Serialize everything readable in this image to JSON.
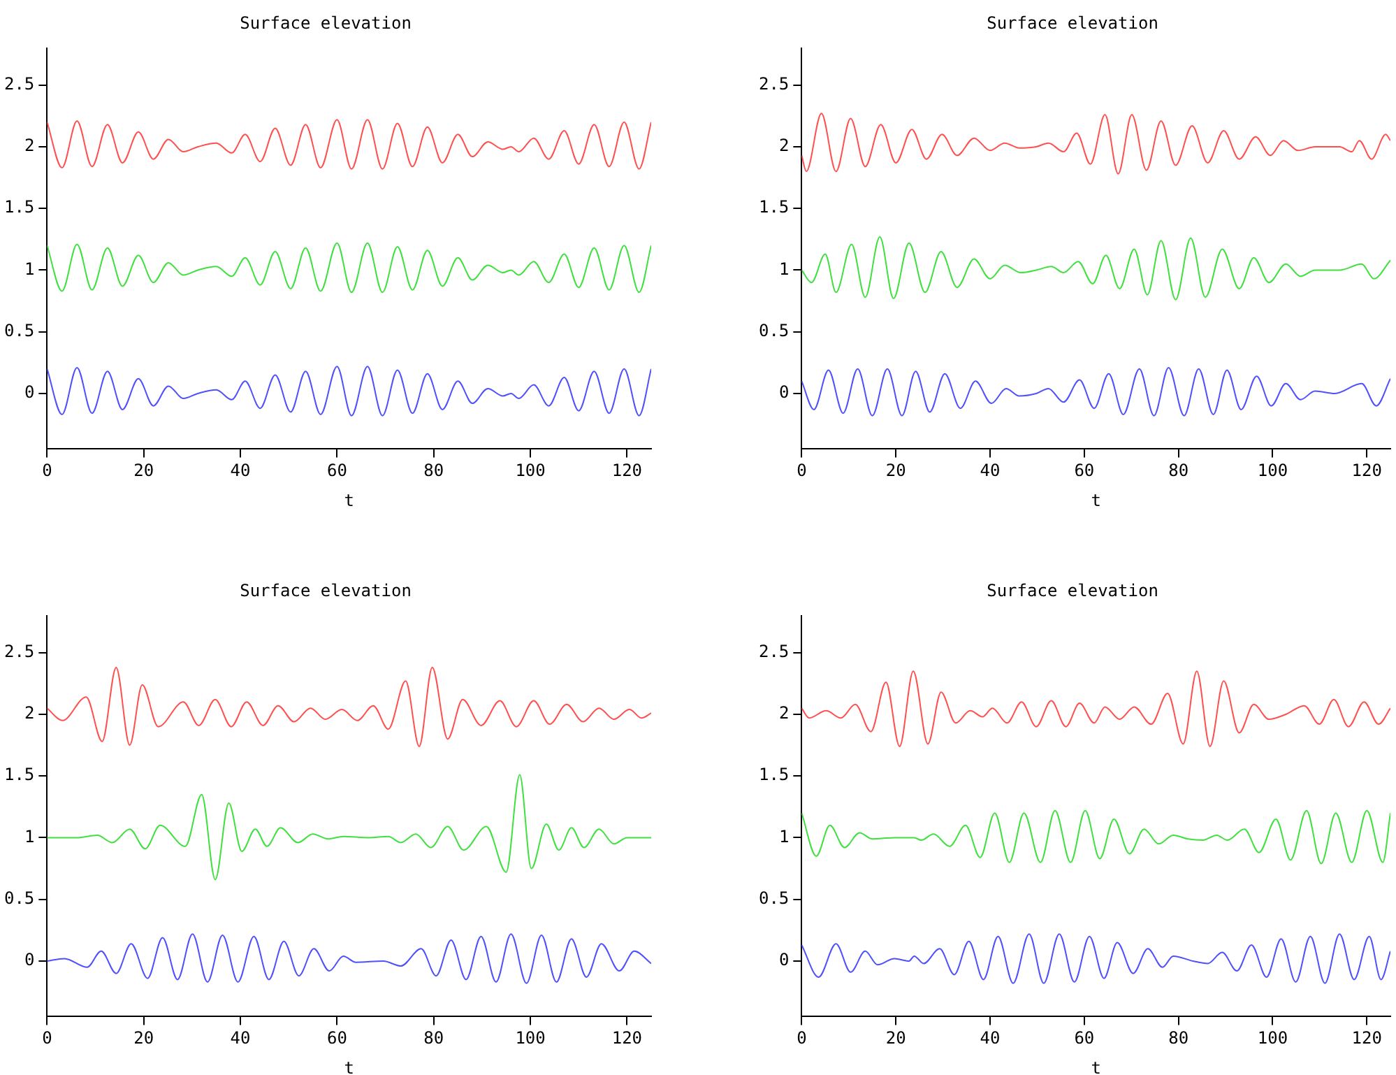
{
  "chart_data": [
    {
      "type": "line",
      "title": "Surface elevation",
      "xlabel": "t",
      "xlim": [
        0,
        125
      ],
      "xticks": [
        0,
        20,
        40,
        60,
        80,
        100,
        120
      ],
      "ylim": [
        -0.45,
        2.8
      ],
      "yticks": [
        0,
        0.5,
        1,
        1.5,
        2,
        2.5
      ],
      "grid": false,
      "legend": false,
      "marker": "none",
      "line_style": "solid",
      "series": [
        {
          "color": "#ff5050",
          "x": [
            0,
            3.1,
            6.2,
            9.3,
            12.5,
            15.6,
            18.9,
            22,
            25.1,
            28.2,
            31.2,
            35,
            38.2,
            41,
            44.1,
            47.2,
            50.4,
            53.5,
            56.6,
            60,
            63,
            66.3,
            69.4,
            72.5,
            75.6,
            78.7,
            81.8,
            85,
            88,
            91.2,
            94.3,
            96,
            97.6,
            100.7,
            103.8,
            107,
            110,
            113.2,
            116.3,
            119.4,
            122.5,
            125
          ],
          "values": [
            2.2,
            1.83,
            2.21,
            1.84,
            2.18,
            1.87,
            2.12,
            1.9,
            2.06,
            1.96,
            2.0,
            2.03,
            1.95,
            2.1,
            1.88,
            2.15,
            1.85,
            2.18,
            1.83,
            2.22,
            1.82,
            2.22,
            1.82,
            2.19,
            1.84,
            2.16,
            1.87,
            2.1,
            1.92,
            2.04,
            1.98,
            2.0,
            1.96,
            2.07,
            1.9,
            2.13,
            1.86,
            2.18,
            1.84,
            2.2,
            1.82,
            2.2
          ]
        },
        {
          "color": "#40e040",
          "x": [
            0,
            3.1,
            6.2,
            9.3,
            12.5,
            15.6,
            18.9,
            22,
            25.1,
            28.2,
            31.2,
            35,
            38.2,
            41,
            44.1,
            47.2,
            50.4,
            53.5,
            56.6,
            60,
            63,
            66.3,
            69.4,
            72.5,
            75.6,
            78.7,
            81.8,
            85,
            88,
            91.2,
            94.3,
            96,
            97.6,
            100.7,
            103.8,
            107,
            110,
            113.2,
            116.3,
            119.4,
            122.5,
            125
          ],
          "values": [
            1.2,
            0.83,
            1.21,
            0.84,
            1.18,
            0.87,
            1.12,
            0.9,
            1.06,
            0.96,
            1.0,
            1.03,
            0.95,
            1.1,
            0.88,
            1.15,
            0.85,
            1.18,
            0.83,
            1.22,
            0.82,
            1.22,
            0.82,
            1.19,
            0.84,
            1.16,
            0.87,
            1.1,
            0.92,
            1.04,
            0.98,
            1.0,
            0.96,
            1.07,
            0.9,
            1.13,
            0.86,
            1.18,
            0.84,
            1.2,
            0.82,
            1.2
          ]
        },
        {
          "color": "#5050ff",
          "x": [
            0,
            3.1,
            6.2,
            9.3,
            12.5,
            15.6,
            18.9,
            22,
            25.1,
            28.2,
            31.2,
            35,
            38.2,
            41,
            44.1,
            47.2,
            50.4,
            53.5,
            56.6,
            60,
            63,
            66.3,
            69.4,
            72.5,
            75.6,
            78.7,
            81.8,
            85,
            88,
            91.2,
            94.3,
            96,
            97.6,
            100.7,
            103.8,
            107,
            110,
            113.2,
            116.3,
            119.4,
            122.5,
            125
          ],
          "values": [
            0.2,
            -0.17,
            0.21,
            -0.16,
            0.18,
            -0.13,
            0.12,
            -0.1,
            0.06,
            -0.04,
            0.0,
            0.03,
            -0.05,
            0.1,
            -0.12,
            0.15,
            -0.15,
            0.18,
            -0.17,
            0.22,
            -0.18,
            0.22,
            -0.18,
            0.19,
            -0.16,
            0.16,
            -0.13,
            0.1,
            -0.08,
            0.04,
            -0.02,
            0.0,
            -0.04,
            0.07,
            -0.1,
            0.13,
            -0.14,
            0.18,
            -0.16,
            0.2,
            -0.18,
            0.2
          ]
        }
      ]
    },
    {
      "type": "line",
      "title": "Surface elevation",
      "xlabel": "t",
      "xlim": [
        0,
        125
      ],
      "xticks": [
        0,
        20,
        40,
        60,
        80,
        100,
        120
      ],
      "ylim": [
        -0.45,
        2.8
      ],
      "yticks": [
        0,
        0.5,
        1,
        1.5,
        2,
        2.5
      ],
      "grid": false,
      "legend": false,
      "marker": "none",
      "line_style": "solid",
      "series": [
        {
          "color": "#ff5050",
          "x": [
            0,
            1,
            4.2,
            7.3,
            10.4,
            13.5,
            16.8,
            20,
            23.4,
            26.5,
            29.8,
            33,
            36.6,
            40,
            43.1,
            46.2,
            49.8,
            52.4,
            55.6,
            58.4,
            61.3,
            64.4,
            67.2,
            70.1,
            73.2,
            76.3,
            79.4,
            82.9,
            86.2,
            89.6,
            92.9,
            96.4,
            99.5,
            102.3,
            105.4,
            109,
            114.2,
            116.8,
            118.4,
            121,
            124,
            125
          ],
          "values": [
            1.93,
            1.8,
            2.27,
            1.8,
            2.23,
            1.84,
            2.18,
            1.87,
            2.14,
            1.9,
            2.1,
            1.93,
            2.07,
            1.97,
            2.03,
            1.99,
            2.0,
            2.03,
            1.96,
            2.11,
            1.86,
            2.26,
            1.78,
            2.26,
            1.81,
            2.21,
            1.85,
            2.17,
            1.87,
            2.13,
            1.9,
            2.08,
            1.93,
            2.05,
            1.97,
            2.0,
            2.0,
            1.96,
            2.05,
            1.9,
            2.1,
            2.05
          ]
        },
        {
          "color": "#40e040",
          "x": [
            0,
            2.1,
            5,
            7.3,
            10.6,
            13.5,
            16.6,
            19.5,
            22.8,
            26.2,
            29.6,
            33,
            36.6,
            40,
            43.1,
            46.5,
            49.8,
            53,
            55.6,
            58.7,
            61.8,
            64.6,
            67.5,
            70.6,
            73.4,
            76.3,
            79.4,
            82.6,
            85.7,
            89.3,
            92.9,
            96,
            99.2,
            102.8,
            105.9,
            109,
            114.2,
            118.9,
            121.5,
            125
          ],
          "values": [
            1.0,
            0.9,
            1.13,
            0.82,
            1.21,
            0.78,
            1.27,
            0.77,
            1.22,
            0.82,
            1.15,
            0.86,
            1.09,
            0.93,
            1.04,
            0.98,
            1.0,
            1.03,
            0.98,
            1.07,
            0.89,
            1.12,
            0.85,
            1.17,
            0.8,
            1.24,
            0.76,
            1.26,
            0.78,
            1.17,
            0.85,
            1.1,
            0.9,
            1.05,
            0.95,
            1.0,
            1.0,
            1.05,
            0.93,
            1.08
          ]
        },
        {
          "color": "#5050ff",
          "x": [
            0,
            2.6,
            5.7,
            8.8,
            11.9,
            15,
            18.2,
            21.3,
            24.2,
            27.2,
            30.4,
            33.7,
            36.9,
            40.3,
            43.4,
            46.2,
            49.8,
            52.4,
            55.6,
            59,
            62.1,
            65.2,
            68.3,
            71.7,
            74.8,
            77.9,
            81.2,
            84.3,
            87.4,
            90.3,
            93.3,
            96.6,
            99.7,
            102.8,
            105.9,
            109,
            113.2,
            118.9,
            122,
            125
          ],
          "values": [
            0.1,
            -0.13,
            0.19,
            -0.16,
            0.2,
            -0.18,
            0.2,
            -0.18,
            0.18,
            -0.15,
            0.16,
            -0.12,
            0.1,
            -0.08,
            0.04,
            -0.02,
            0.0,
            0.04,
            -0.07,
            0.11,
            -0.12,
            0.16,
            -0.17,
            0.2,
            -0.18,
            0.21,
            -0.18,
            0.2,
            -0.17,
            0.19,
            -0.13,
            0.14,
            -0.1,
            0.08,
            -0.05,
            0.02,
            0.0,
            0.08,
            -0.1,
            0.12
          ]
        }
      ]
    },
    {
      "type": "line",
      "title": "Surface elevation",
      "xlabel": "t",
      "xlim": [
        0,
        125
      ],
      "xticks": [
        0,
        20,
        40,
        60,
        80,
        100,
        120
      ],
      "ylim": [
        -0.45,
        2.8
      ],
      "yticks": [
        0,
        0.5,
        1,
        1.5,
        2,
        2.5
      ],
      "grid": false,
      "legend": false,
      "marker": "none",
      "line_style": "solid",
      "series": [
        {
          "color": "#ff5050",
          "x": [
            0,
            3.2,
            8.1,
            11.4,
            14.3,
            17.1,
            19.7,
            23,
            28.2,
            31.4,
            34.8,
            38.1,
            41.3,
            44.7,
            47.8,
            51.1,
            54.5,
            57.6,
            61,
            64.2,
            67.5,
            70.6,
            74.2,
            77,
            79.7,
            82.9,
            86,
            89.8,
            93.7,
            97.1,
            100.7,
            104,
            107.5,
            110.9,
            114.2,
            117.3,
            120.5,
            123,
            125
          ],
          "values": [
            2.05,
            1.95,
            2.14,
            1.78,
            2.38,
            1.75,
            2.24,
            1.9,
            2.1,
            1.91,
            2.12,
            1.9,
            2.1,
            1.91,
            2.07,
            1.94,
            2.05,
            1.96,
            2.04,
            1.95,
            2.07,
            1.88,
            2.27,
            1.74,
            2.38,
            1.8,
            2.12,
            1.91,
            2.11,
            1.9,
            2.11,
            1.92,
            2.08,
            1.94,
            2.05,
            1.96,
            2.04,
            1.97,
            2.01
          ]
        },
        {
          "color": "#40e040",
          "x": [
            0,
            6.2,
            10.4,
            13.5,
            17.1,
            20.3,
            23.4,
            28.6,
            32,
            34.8,
            37.6,
            40.3,
            43.1,
            45.5,
            48.3,
            51.9,
            55,
            58.1,
            61.3,
            66.5,
            70.6,
            73.2,
            76.3,
            79.4,
            82.9,
            86.2,
            90.9,
            95,
            97.8,
            100.2,
            103.3,
            105.9,
            108.5,
            111.1,
            114.2,
            117.3,
            120,
            125
          ],
          "values": [
            1.0,
            1.0,
            1.02,
            0.96,
            1.07,
            0.91,
            1.1,
            0.93,
            1.35,
            0.66,
            1.28,
            0.89,
            1.07,
            0.93,
            1.08,
            0.96,
            1.03,
            0.99,
            1.01,
            1.0,
            1.01,
            0.96,
            1.03,
            0.92,
            1.09,
            0.9,
            1.09,
            0.72,
            1.51,
            0.75,
            1.11,
            0.9,
            1.08,
            0.92,
            1.07,
            0.95,
            1.0,
            1.0
          ]
        },
        {
          "color": "#5050ff",
          "x": [
            0,
            3.6,
            8.3,
            11.2,
            14.3,
            17.4,
            20.8,
            23.9,
            27,
            30.1,
            33.2,
            36.3,
            39.5,
            42.8,
            45.9,
            49,
            52.1,
            55.2,
            58.4,
            61.3,
            63.9,
            69.6,
            73.2,
            77.4,
            80.5,
            83.6,
            86.7,
            89.8,
            92.9,
            96,
            99.2,
            102.3,
            105.4,
            108.5,
            111.6,
            114.7,
            118.4,
            121.5,
            125
          ],
          "values": [
            0.0,
            0.02,
            -0.05,
            0.08,
            -0.1,
            0.14,
            -0.14,
            0.19,
            -0.15,
            0.22,
            -0.17,
            0.21,
            -0.17,
            0.2,
            -0.15,
            0.16,
            -0.12,
            0.1,
            -0.08,
            0.04,
            -0.01,
            0.0,
            -0.04,
            0.1,
            -0.12,
            0.17,
            -0.15,
            0.2,
            -0.17,
            0.22,
            -0.18,
            0.21,
            -0.17,
            0.18,
            -0.13,
            0.14,
            -0.08,
            0.08,
            -0.02
          ]
        }
      ]
    },
    {
      "type": "line",
      "title": "Surface elevation",
      "xlabel": "t",
      "xlim": [
        0,
        125
      ],
      "xticks": [
        0,
        20,
        40,
        60,
        80,
        100,
        120
      ],
      "ylim": [
        -0.45,
        2.8
      ],
      "yticks": [
        0,
        0.5,
        1,
        1.5,
        2,
        2.5
      ],
      "grid": false,
      "legend": false,
      "marker": "none",
      "line_style": "solid",
      "series": [
        {
          "color": "#ff5050",
          "x": [
            0,
            1.6,
            5.2,
            8.3,
            11.4,
            14.7,
            17.9,
            20.8,
            23.7,
            26.8,
            29.6,
            32.7,
            35.8,
            38.4,
            40.5,
            43.6,
            46.7,
            49.8,
            53,
            56.1,
            59,
            62.1,
            64.4,
            67.5,
            70.6,
            74.2,
            77.7,
            81,
            83.9,
            86.7,
            89.6,
            92.9,
            96,
            99.2,
            102.8,
            106.7,
            109.9,
            113,
            116.1,
            119.4,
            122.5,
            125
          ],
          "values": [
            2.05,
            1.97,
            2.03,
            1.97,
            2.08,
            1.86,
            2.26,
            1.74,
            2.35,
            1.76,
            2.18,
            1.93,
            2.03,
            1.98,
            2.05,
            1.93,
            2.1,
            1.9,
            2.11,
            1.9,
            2.09,
            1.93,
            2.06,
            1.96,
            2.06,
            1.92,
            2.17,
            1.76,
            2.35,
            1.74,
            2.27,
            1.85,
            2.08,
            1.96,
            2.0,
            2.07,
            1.92,
            2.12,
            1.9,
            2.1,
            1.92,
            2.05
          ]
        },
        {
          "color": "#40e040",
          "x": [
            0,
            3.1,
            6,
            9.1,
            12.3,
            15,
            19.7,
            23.9,
            25.4,
            28,
            31.4,
            34.8,
            37.9,
            41,
            44.1,
            47.2,
            50.7,
            53.8,
            57.1,
            60.2,
            63.3,
            66.3,
            69.6,
            72.7,
            75.8,
            78.9,
            82,
            85.2,
            88.1,
            90.4,
            94,
            97.1,
            100.7,
            103.8,
            107.2,
            110.3,
            113.4,
            116.8,
            120,
            123.4,
            125
          ],
          "values": [
            1.2,
            0.85,
            1.1,
            0.92,
            1.04,
            0.99,
            1.0,
            1.0,
            0.98,
            1.03,
            0.93,
            1.1,
            0.84,
            1.2,
            0.8,
            1.2,
            0.8,
            1.22,
            0.8,
            1.22,
            0.83,
            1.15,
            0.87,
            1.07,
            0.95,
            1.02,
            0.99,
            0.98,
            1.02,
            0.98,
            1.07,
            0.88,
            1.15,
            0.82,
            1.22,
            0.79,
            1.2,
            0.8,
            1.22,
            0.8,
            1.2
          ]
        },
        {
          "color": "#5050ff",
          "x": [
            0,
            3.6,
            7.3,
            10.4,
            13.5,
            16.1,
            19.7,
            22.8,
            23.9,
            25.9,
            29.3,
            32.4,
            35.5,
            38.6,
            41.7,
            44.9,
            48.3,
            51.4,
            54.7,
            57.9,
            61.1,
            64.2,
            67,
            70.4,
            73.5,
            76.6,
            78.9,
            83.1,
            86.2,
            89.3,
            92.4,
            95.5,
            98.7,
            101.8,
            104.9,
            108,
            111.1,
            114.2,
            117.3,
            120.5,
            123,
            125
          ],
          "values": [
            0.13,
            -0.13,
            0.14,
            -0.09,
            0.08,
            -0.03,
            0.02,
            0.0,
            0.04,
            -0.02,
            0.1,
            -0.11,
            0.16,
            -0.15,
            0.2,
            -0.18,
            0.22,
            -0.18,
            0.22,
            -0.17,
            0.2,
            -0.14,
            0.15,
            -0.1,
            0.1,
            -0.05,
            0.04,
            0.0,
            -0.02,
            0.07,
            -0.08,
            0.13,
            -0.13,
            0.18,
            -0.17,
            0.2,
            -0.18,
            0.22,
            -0.15,
            0.2,
            -0.15,
            0.08
          ]
        }
      ]
    }
  ]
}
